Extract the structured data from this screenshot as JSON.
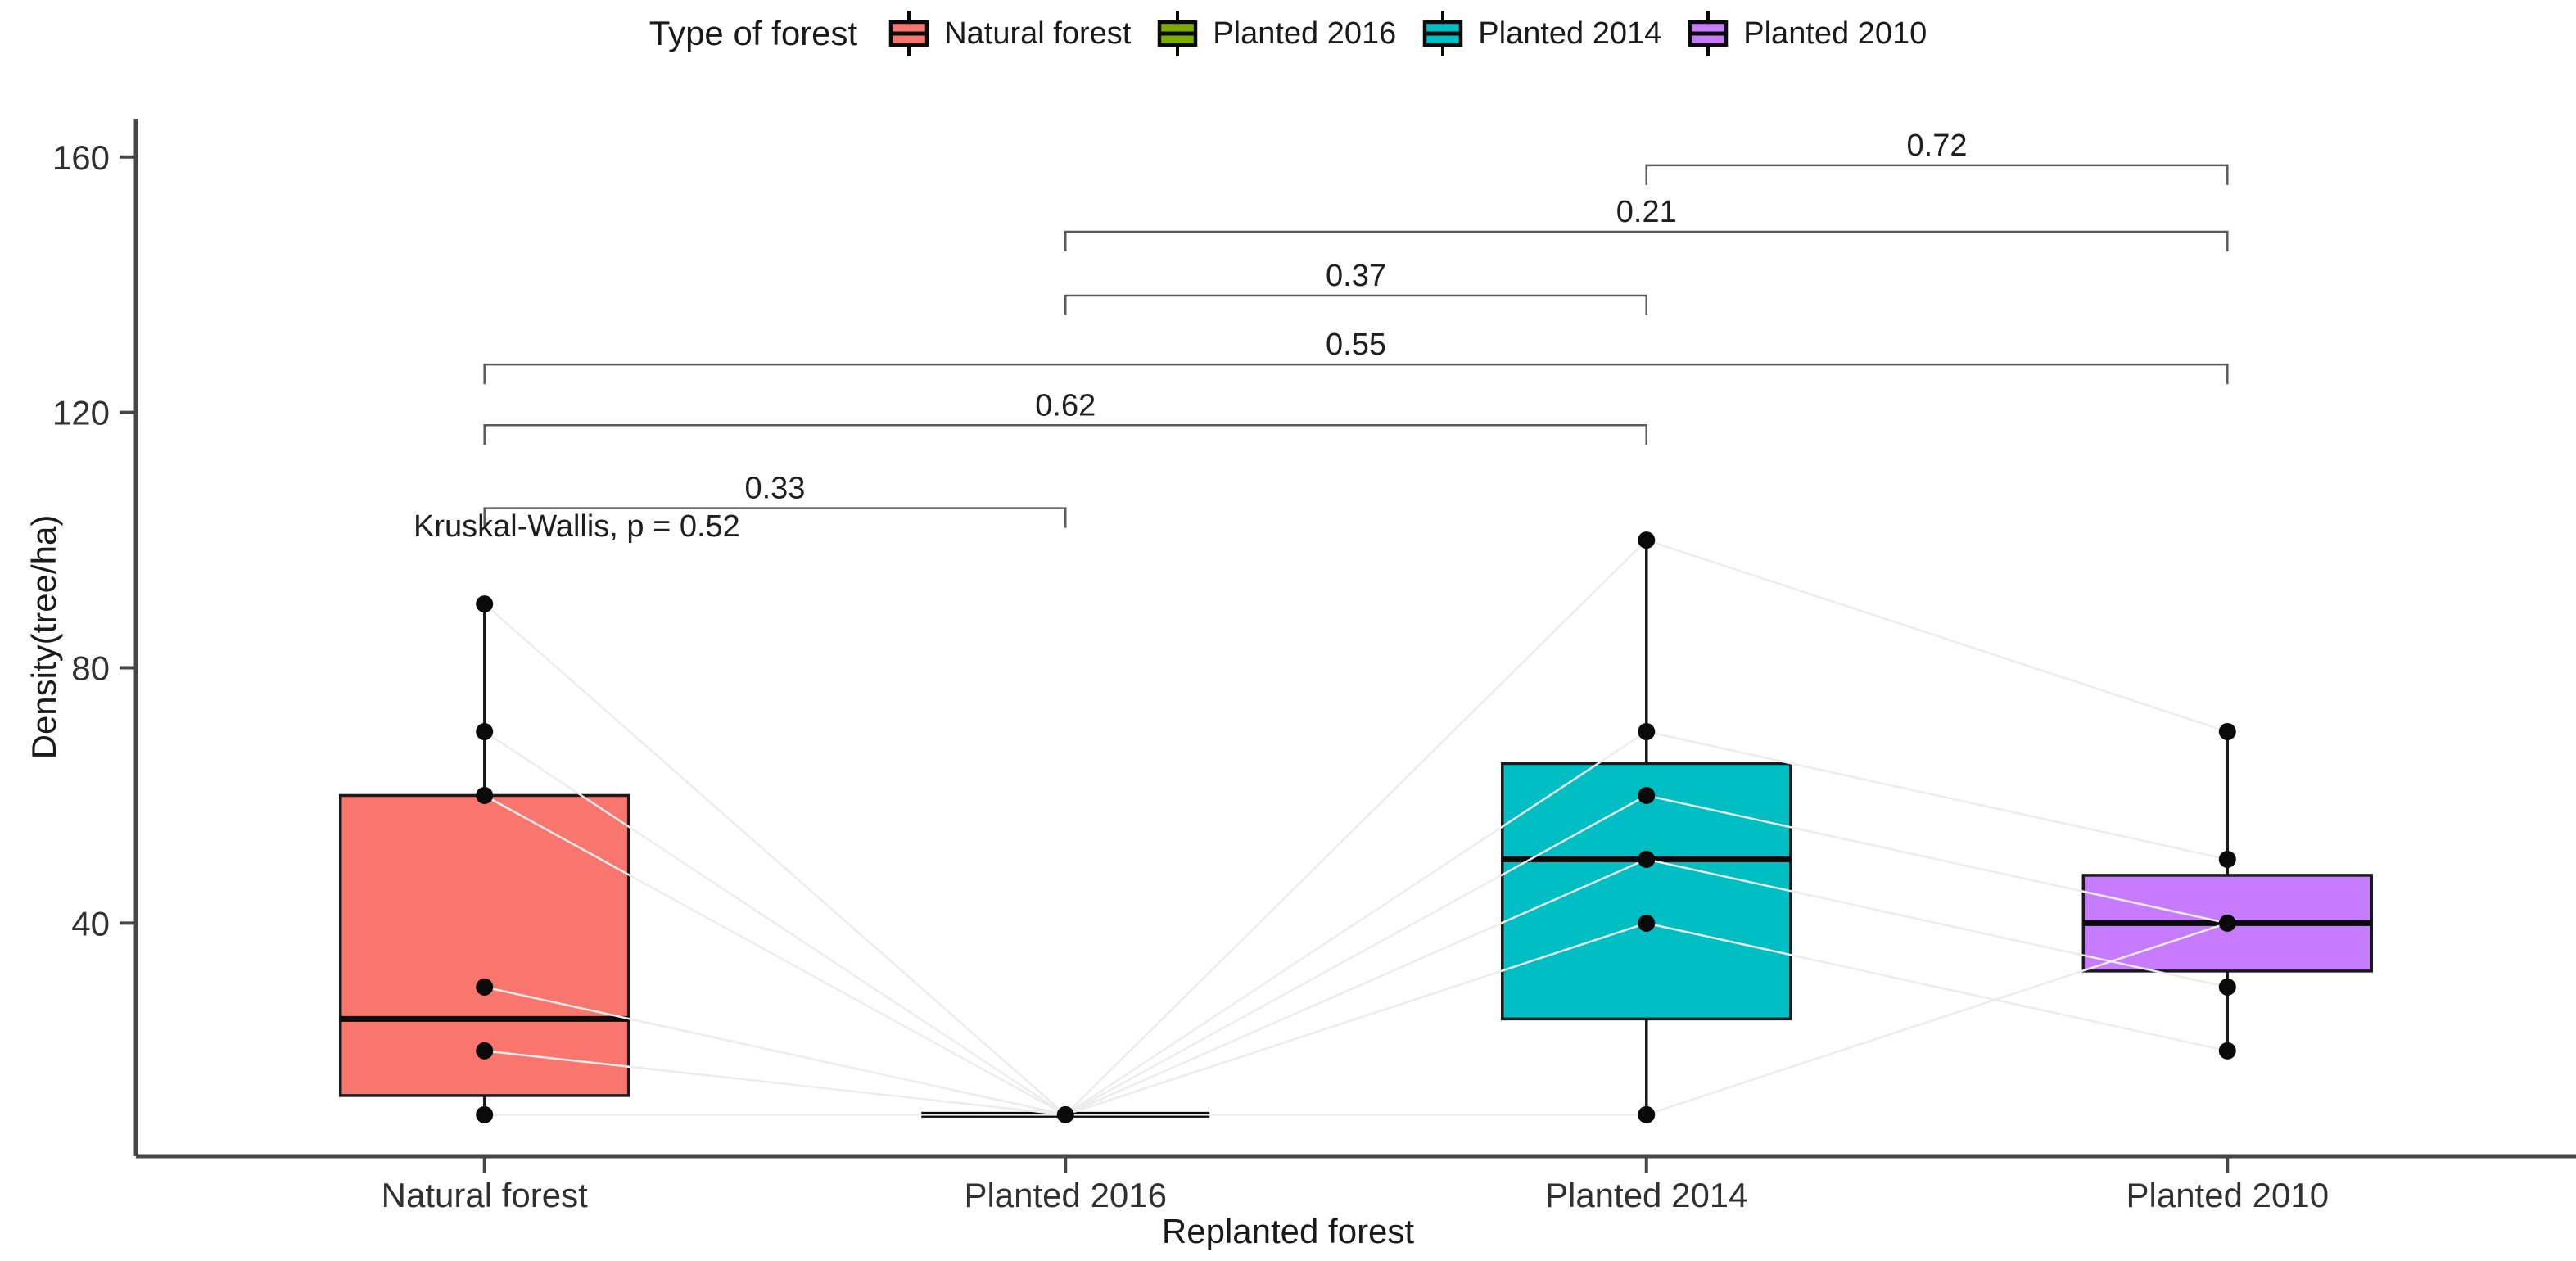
{
  "legend": {
    "title": "Type of forest",
    "items": [
      {
        "label": "Natural forest",
        "color": "#F8766D"
      },
      {
        "label": "Planted 2016",
        "color": "#7CAE00"
      },
      {
        "label": "Planted 2014",
        "color": "#00BFC4"
      },
      {
        "label": "Planted 2010",
        "color": "#C77CFF"
      }
    ]
  },
  "axes": {
    "y_title": "Density(tree/ha)",
    "x_title": "Replanted forest"
  },
  "chart_data": {
    "type": "boxplot",
    "title": "",
    "xlabel": "Replanted forest",
    "ylabel": "Density(tree/ha)",
    "ylim": [
      3.5,
      166
    ],
    "y_ticks": [
      40,
      80,
      120,
      160
    ],
    "grid": false,
    "legend_position": "top",
    "categories": [
      "Natural forest",
      "Planted 2016",
      "Planted 2014",
      "Planted 2010"
    ],
    "series": [
      {
        "name": "Natural forest",
        "color": "#F8766D",
        "min": 10,
        "q1": 13,
        "median": 25,
        "q3": 60,
        "max": 90,
        "points": [
          90,
          70,
          60,
          30,
          20,
          10
        ]
      },
      {
        "name": "Planted 2016",
        "color": "#7CAE00",
        "min": 10,
        "q1": 10,
        "median": 10,
        "q3": 10,
        "max": 10,
        "points": [
          10
        ]
      },
      {
        "name": "Planted 2014",
        "color": "#00BFC4",
        "min": 10,
        "q1": 25,
        "median": 50,
        "q3": 65,
        "max": 100,
        "points": [
          100,
          70,
          60,
          50,
          40,
          10
        ]
      },
      {
        "name": "Planted 2010",
        "color": "#C77CFF",
        "min": 20,
        "q1": 32.5,
        "median": 40,
        "q3": 47.5,
        "max": 70,
        "points": [
          70,
          50,
          40,
          30,
          20
        ]
      }
    ],
    "comparisons": [
      {
        "group1": 0,
        "group2": 1,
        "p": "0.33",
        "y": 105
      },
      {
        "group1": 0,
        "group2": 2,
        "p": "0.62",
        "y": 118
      },
      {
        "group1": 0,
        "group2": 3,
        "p": "0.55",
        "y": 127.5
      },
      {
        "group1": 1,
        "group2": 2,
        "p": "0.37",
        "y": 138.3
      },
      {
        "group1": 1,
        "group2": 3,
        "p": "0.21",
        "y": 148.3
      },
      {
        "group1": 2,
        "group2": 3,
        "p": "0.72",
        "y": 158.7
      }
    ],
    "kruskal_label": "Kruskal-Wallis, p = 0.52",
    "pair_lines": [
      {
        "from": [
          0,
          90
        ],
        "to": [
          1,
          10
        ]
      },
      {
        "from": [
          0,
          70
        ],
        "to": [
          1,
          10
        ]
      },
      {
        "from": [
          0,
          60
        ],
        "to": [
          1,
          10
        ]
      },
      {
        "from": [
          0,
          30
        ],
        "to": [
          1,
          10
        ]
      },
      {
        "from": [
          0,
          20
        ],
        "to": [
          1,
          10
        ]
      },
      {
        "from": [
          0,
          10
        ],
        "to": [
          1,
          10
        ]
      },
      {
        "from": [
          1,
          10
        ],
        "to": [
          2,
          100
        ]
      },
      {
        "from": [
          1,
          10
        ],
        "to": [
          2,
          70
        ]
      },
      {
        "from": [
          1,
          10
        ],
        "to": [
          2,
          60
        ]
      },
      {
        "from": [
          1,
          10
        ],
        "to": [
          2,
          50
        ]
      },
      {
        "from": [
          1,
          10
        ],
        "to": [
          2,
          40
        ]
      },
      {
        "from": [
          1,
          10
        ],
        "to": [
          2,
          10
        ]
      },
      {
        "from": [
          2,
          100
        ],
        "to": [
          3,
          70
        ]
      },
      {
        "from": [
          2,
          70
        ],
        "to": [
          3,
          50
        ]
      },
      {
        "from": [
          2,
          60
        ],
        "to": [
          3,
          40
        ]
      },
      {
        "from": [
          2,
          50
        ],
        "to": [
          3,
          30
        ]
      },
      {
        "from": [
          2,
          40
        ],
        "to": [
          3,
          20
        ]
      },
      {
        "from": [
          2,
          10
        ],
        "to": [
          3,
          40
        ]
      }
    ],
    "style": {
      "box_border": "#1a1a1a",
      "median_color": "#0a0a0a",
      "point_color": "#0a0a0a",
      "axis_color": "#464646",
      "bracket_color": "#595959",
      "text_color": "#303030",
      "pair_line_color": "#ececec"
    }
  }
}
